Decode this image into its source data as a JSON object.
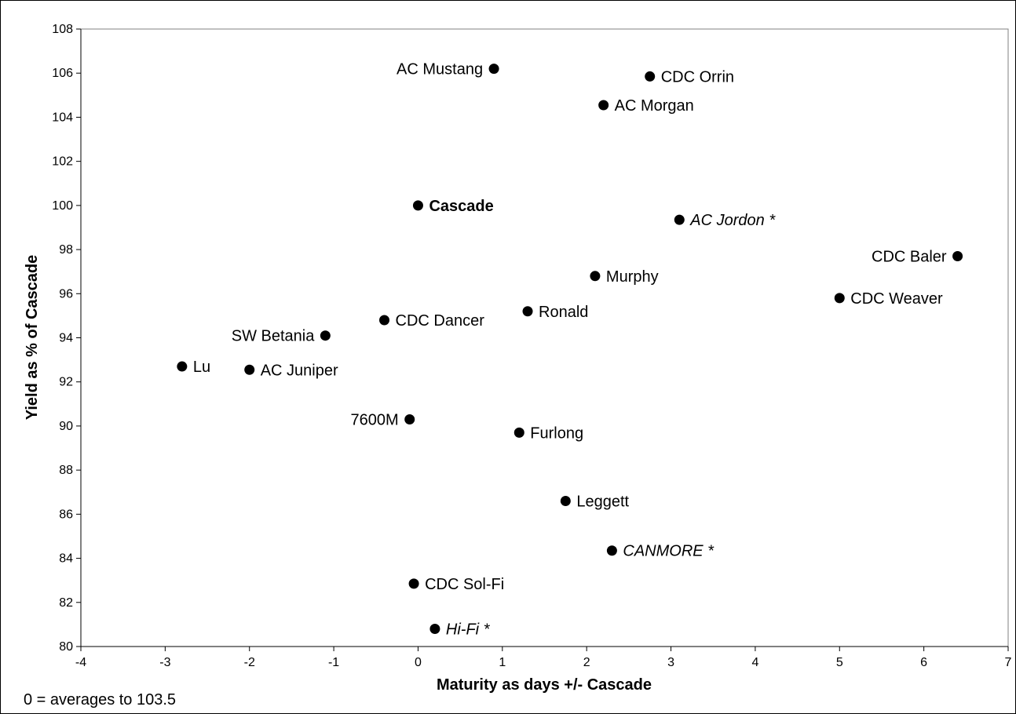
{
  "chart_data": {
    "type": "scatter",
    "xlabel": "Maturity as days +/- Cascade",
    "ylabel": "Yield as % of Cascade",
    "xlim": [
      -4,
      7
    ],
    "ylim": [
      80,
      108
    ],
    "x_ticks": [
      -4,
      -3,
      -2,
      -1,
      0,
      1,
      2,
      3,
      4,
      5,
      6,
      7
    ],
    "y_ticks": [
      80,
      82,
      84,
      86,
      88,
      90,
      92,
      94,
      96,
      98,
      100,
      102,
      104,
      106,
      108
    ],
    "grid": false,
    "footnote": "0 = averages to 103.5",
    "points": [
      {
        "label": "AC Mustang",
        "x": 0.9,
        "y": 106.2,
        "label_side": "left",
        "style": "normal"
      },
      {
        "label": "CDC Orrin",
        "x": 2.75,
        "y": 105.85,
        "label_side": "right",
        "style": "normal"
      },
      {
        "label": "AC Morgan",
        "x": 2.2,
        "y": 104.55,
        "label_side": "right",
        "style": "normal"
      },
      {
        "label": "Cascade",
        "x": 0.0,
        "y": 100.0,
        "label_side": "right",
        "style": "bold"
      },
      {
        "label": "AC Jordon *",
        "x": 3.1,
        "y": 99.35,
        "label_side": "right",
        "style": "italic"
      },
      {
        "label": "CDC Baler",
        "x": 6.4,
        "y": 97.7,
        "label_side": "left",
        "style": "normal"
      },
      {
        "label": "Murphy",
        "x": 2.1,
        "y": 96.8,
        "label_side": "right",
        "style": "normal"
      },
      {
        "label": "CDC Weaver",
        "x": 5.0,
        "y": 95.8,
        "label_side": "right",
        "style": "normal"
      },
      {
        "label": "Ronald",
        "x": 1.3,
        "y": 95.2,
        "label_side": "right",
        "style": "normal"
      },
      {
        "label": "CDC Dancer",
        "x": -0.4,
        "y": 94.8,
        "label_side": "right",
        "style": "normal"
      },
      {
        "label": "SW Betania",
        "x": -1.1,
        "y": 94.1,
        "label_side": "left",
        "style": "normal"
      },
      {
        "label": "Lu",
        "x": -2.8,
        "y": 92.7,
        "label_side": "right",
        "style": "normal"
      },
      {
        "label": "AC Juniper",
        "x": -2.0,
        "y": 92.55,
        "label_side": "right",
        "style": "normal"
      },
      {
        "label": "7600M",
        "x": -0.1,
        "y": 90.3,
        "label_side": "left",
        "style": "normal"
      },
      {
        "label": "Furlong",
        "x": 1.2,
        "y": 89.7,
        "label_side": "right",
        "style": "normal"
      },
      {
        "label": "Leggett",
        "x": 1.75,
        "y": 86.6,
        "label_side": "right",
        "style": "normal"
      },
      {
        "label": "CANMORE *",
        "x": 2.3,
        "y": 84.35,
        "label_side": "right",
        "style": "italic"
      },
      {
        "label": "CDC Sol-Fi",
        "x": -0.05,
        "y": 82.85,
        "label_side": "right",
        "style": "normal"
      },
      {
        "label": "Hi-Fi *",
        "x": 0.2,
        "y": 80.8,
        "label_side": "right",
        "style": "italic"
      }
    ]
  }
}
